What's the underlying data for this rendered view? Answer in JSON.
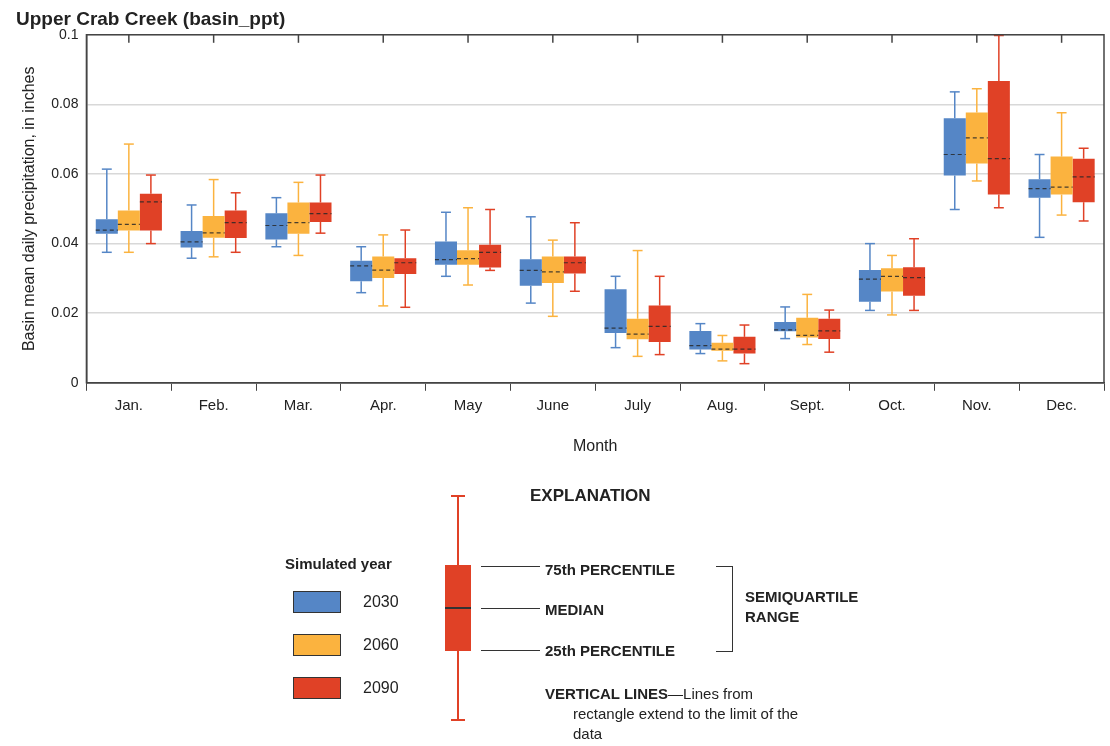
{
  "chart_data": {
    "type": "box",
    "title": "Upper Crab Creek (basin_ppt)",
    "xlabel": "Month",
    "ylabel": "Basin mean daily precipitation, in inches",
    "categories": [
      "Jan.",
      "Feb.",
      "Mar.",
      "Apr.",
      "May",
      "June",
      "July",
      "Aug.",
      "Sept.",
      "Oct.",
      "Nov.",
      "Dec."
    ],
    "ylim": [
      0,
      0.1
    ],
    "yticks": [
      0,
      0.02,
      0.04,
      0.06,
      0.08,
      0.1
    ],
    "grid": "y",
    "legend": "bottom",
    "legend_title": "Simulated year",
    "line_style": "dashed",
    "series": [
      {
        "name": "2030",
        "color": "#5586c6",
        "boxes": [
          {
            "low": 0.0375,
            "q1": 0.0428,
            "median": 0.0439,
            "q3": 0.047,
            "high": 0.0614
          },
          {
            "low": 0.0358,
            "q1": 0.0389,
            "median": 0.0405,
            "q3": 0.0436,
            "high": 0.0511
          },
          {
            "low": 0.0391,
            "q1": 0.0412,
            "median": 0.0452,
            "q3": 0.0487,
            "high": 0.0532
          },
          {
            "low": 0.0259,
            "q1": 0.0292,
            "median": 0.0336,
            "q3": 0.0351,
            "high": 0.0391
          },
          {
            "low": 0.0306,
            "q1": 0.0339,
            "median": 0.0354,
            "q3": 0.0406,
            "high": 0.049
          },
          {
            "low": 0.0229,
            "q1": 0.0279,
            "median": 0.0323,
            "q3": 0.0355,
            "high": 0.0477
          },
          {
            "low": 0.0101,
            "q1": 0.0143,
            "median": 0.0157,
            "q3": 0.0269,
            "high": 0.0306
          },
          {
            "low": 0.0084,
            "q1": 0.0096,
            "median": 0.0107,
            "q3": 0.0149,
            "high": 0.017
          },
          {
            "low": 0.0127,
            "q1": 0.0148,
            "median": 0.0152,
            "q3": 0.0175,
            "high": 0.0218
          },
          {
            "low": 0.0208,
            "q1": 0.0233,
            "median": 0.0298,
            "q3": 0.0324,
            "high": 0.04
          },
          {
            "low": 0.0498,
            "q1": 0.0596,
            "median": 0.0656,
            "q3": 0.076,
            "high": 0.0836
          },
          {
            "low": 0.0418,
            "q1": 0.0532,
            "median": 0.0558,
            "q3": 0.0585,
            "high": 0.0656
          }
        ]
      },
      {
        "name": "2060",
        "color": "#fbb33f",
        "boxes": [
          {
            "low": 0.0375,
            "q1": 0.0438,
            "median": 0.0455,
            "q3": 0.0495,
            "high": 0.0686
          },
          {
            "low": 0.0362,
            "q1": 0.0417,
            "median": 0.0431,
            "q3": 0.0479,
            "high": 0.0584
          },
          {
            "low": 0.0366,
            "q1": 0.0428,
            "median": 0.046,
            "q3": 0.0518,
            "high": 0.0576
          },
          {
            "low": 0.0221,
            "q1": 0.0301,
            "median": 0.0324,
            "q3": 0.0363,
            "high": 0.0425
          },
          {
            "low": 0.0281,
            "q1": 0.0339,
            "median": 0.0357,
            "q3": 0.0381,
            "high": 0.0503
          },
          {
            "low": 0.0191,
            "q1": 0.0287,
            "median": 0.0319,
            "q3": 0.0363,
            "high": 0.041
          },
          {
            "low": 0.0076,
            "q1": 0.0125,
            "median": 0.014,
            "q3": 0.0184,
            "high": 0.038
          },
          {
            "low": 0.0063,
            "q1": 0.0092,
            "median": 0.0097,
            "q3": 0.0115,
            "high": 0.0136
          },
          {
            "low": 0.011,
            "q1": 0.013,
            "median": 0.0136,
            "q3": 0.0187,
            "high": 0.0254
          },
          {
            "low": 0.0195,
            "q1": 0.0262,
            "median": 0.0306,
            "q3": 0.0329,
            "high": 0.0366
          },
          {
            "low": 0.058,
            "q1": 0.063,
            "median": 0.0704,
            "q3": 0.0777,
            "high": 0.0845
          },
          {
            "low": 0.0482,
            "q1": 0.0541,
            "median": 0.0562,
            "q3": 0.065,
            "high": 0.0776
          }
        ]
      },
      {
        "name": "2090",
        "color": "#e04126",
        "boxes": [
          {
            "low": 0.04,
            "q1": 0.0438,
            "median": 0.052,
            "q3": 0.0543,
            "high": 0.0597
          },
          {
            "low": 0.0375,
            "q1": 0.0416,
            "median": 0.046,
            "q3": 0.0495,
            "high": 0.0546
          },
          {
            "low": 0.043,
            "q1": 0.0462,
            "median": 0.0486,
            "q3": 0.0518,
            "high": 0.0597
          },
          {
            "low": 0.0217,
            "q1": 0.0313,
            "median": 0.0345,
            "q3": 0.0358,
            "high": 0.0439
          },
          {
            "low": 0.0323,
            "q1": 0.0331,
            "median": 0.0375,
            "q3": 0.0397,
            "high": 0.0498
          },
          {
            "low": 0.0263,
            "q1": 0.0314,
            "median": 0.0345,
            "q3": 0.0363,
            "high": 0.046
          },
          {
            "low": 0.0081,
            "q1": 0.0117,
            "median": 0.0162,
            "q3": 0.0222,
            "high": 0.0306
          },
          {
            "low": 0.0055,
            "q1": 0.0084,
            "median": 0.0097,
            "q3": 0.0132,
            "high": 0.0166
          },
          {
            "low": 0.0088,
            "q1": 0.0126,
            "median": 0.0149,
            "q3": 0.0184,
            "high": 0.0209
          },
          {
            "low": 0.0208,
            "q1": 0.025,
            "median": 0.0302,
            "q3": 0.0332,
            "high": 0.0414
          },
          {
            "low": 0.0503,
            "q1": 0.0541,
            "median": 0.0644,
            "q3": 0.0867,
            "high": 0.0998
          },
          {
            "low": 0.0465,
            "q1": 0.0519,
            "median": 0.0592,
            "q3": 0.0644,
            "high": 0.0674
          }
        ]
      }
    ],
    "annotations": [
      "EXPLANATION",
      "75th PERCENTILE",
      "MEDIAN",
      "25th PERCENTILE",
      "SEMIQUARTILE RANGE",
      "VERTICAL LINES—Lines from rectangle extend to the limit of the data"
    ]
  }
}
